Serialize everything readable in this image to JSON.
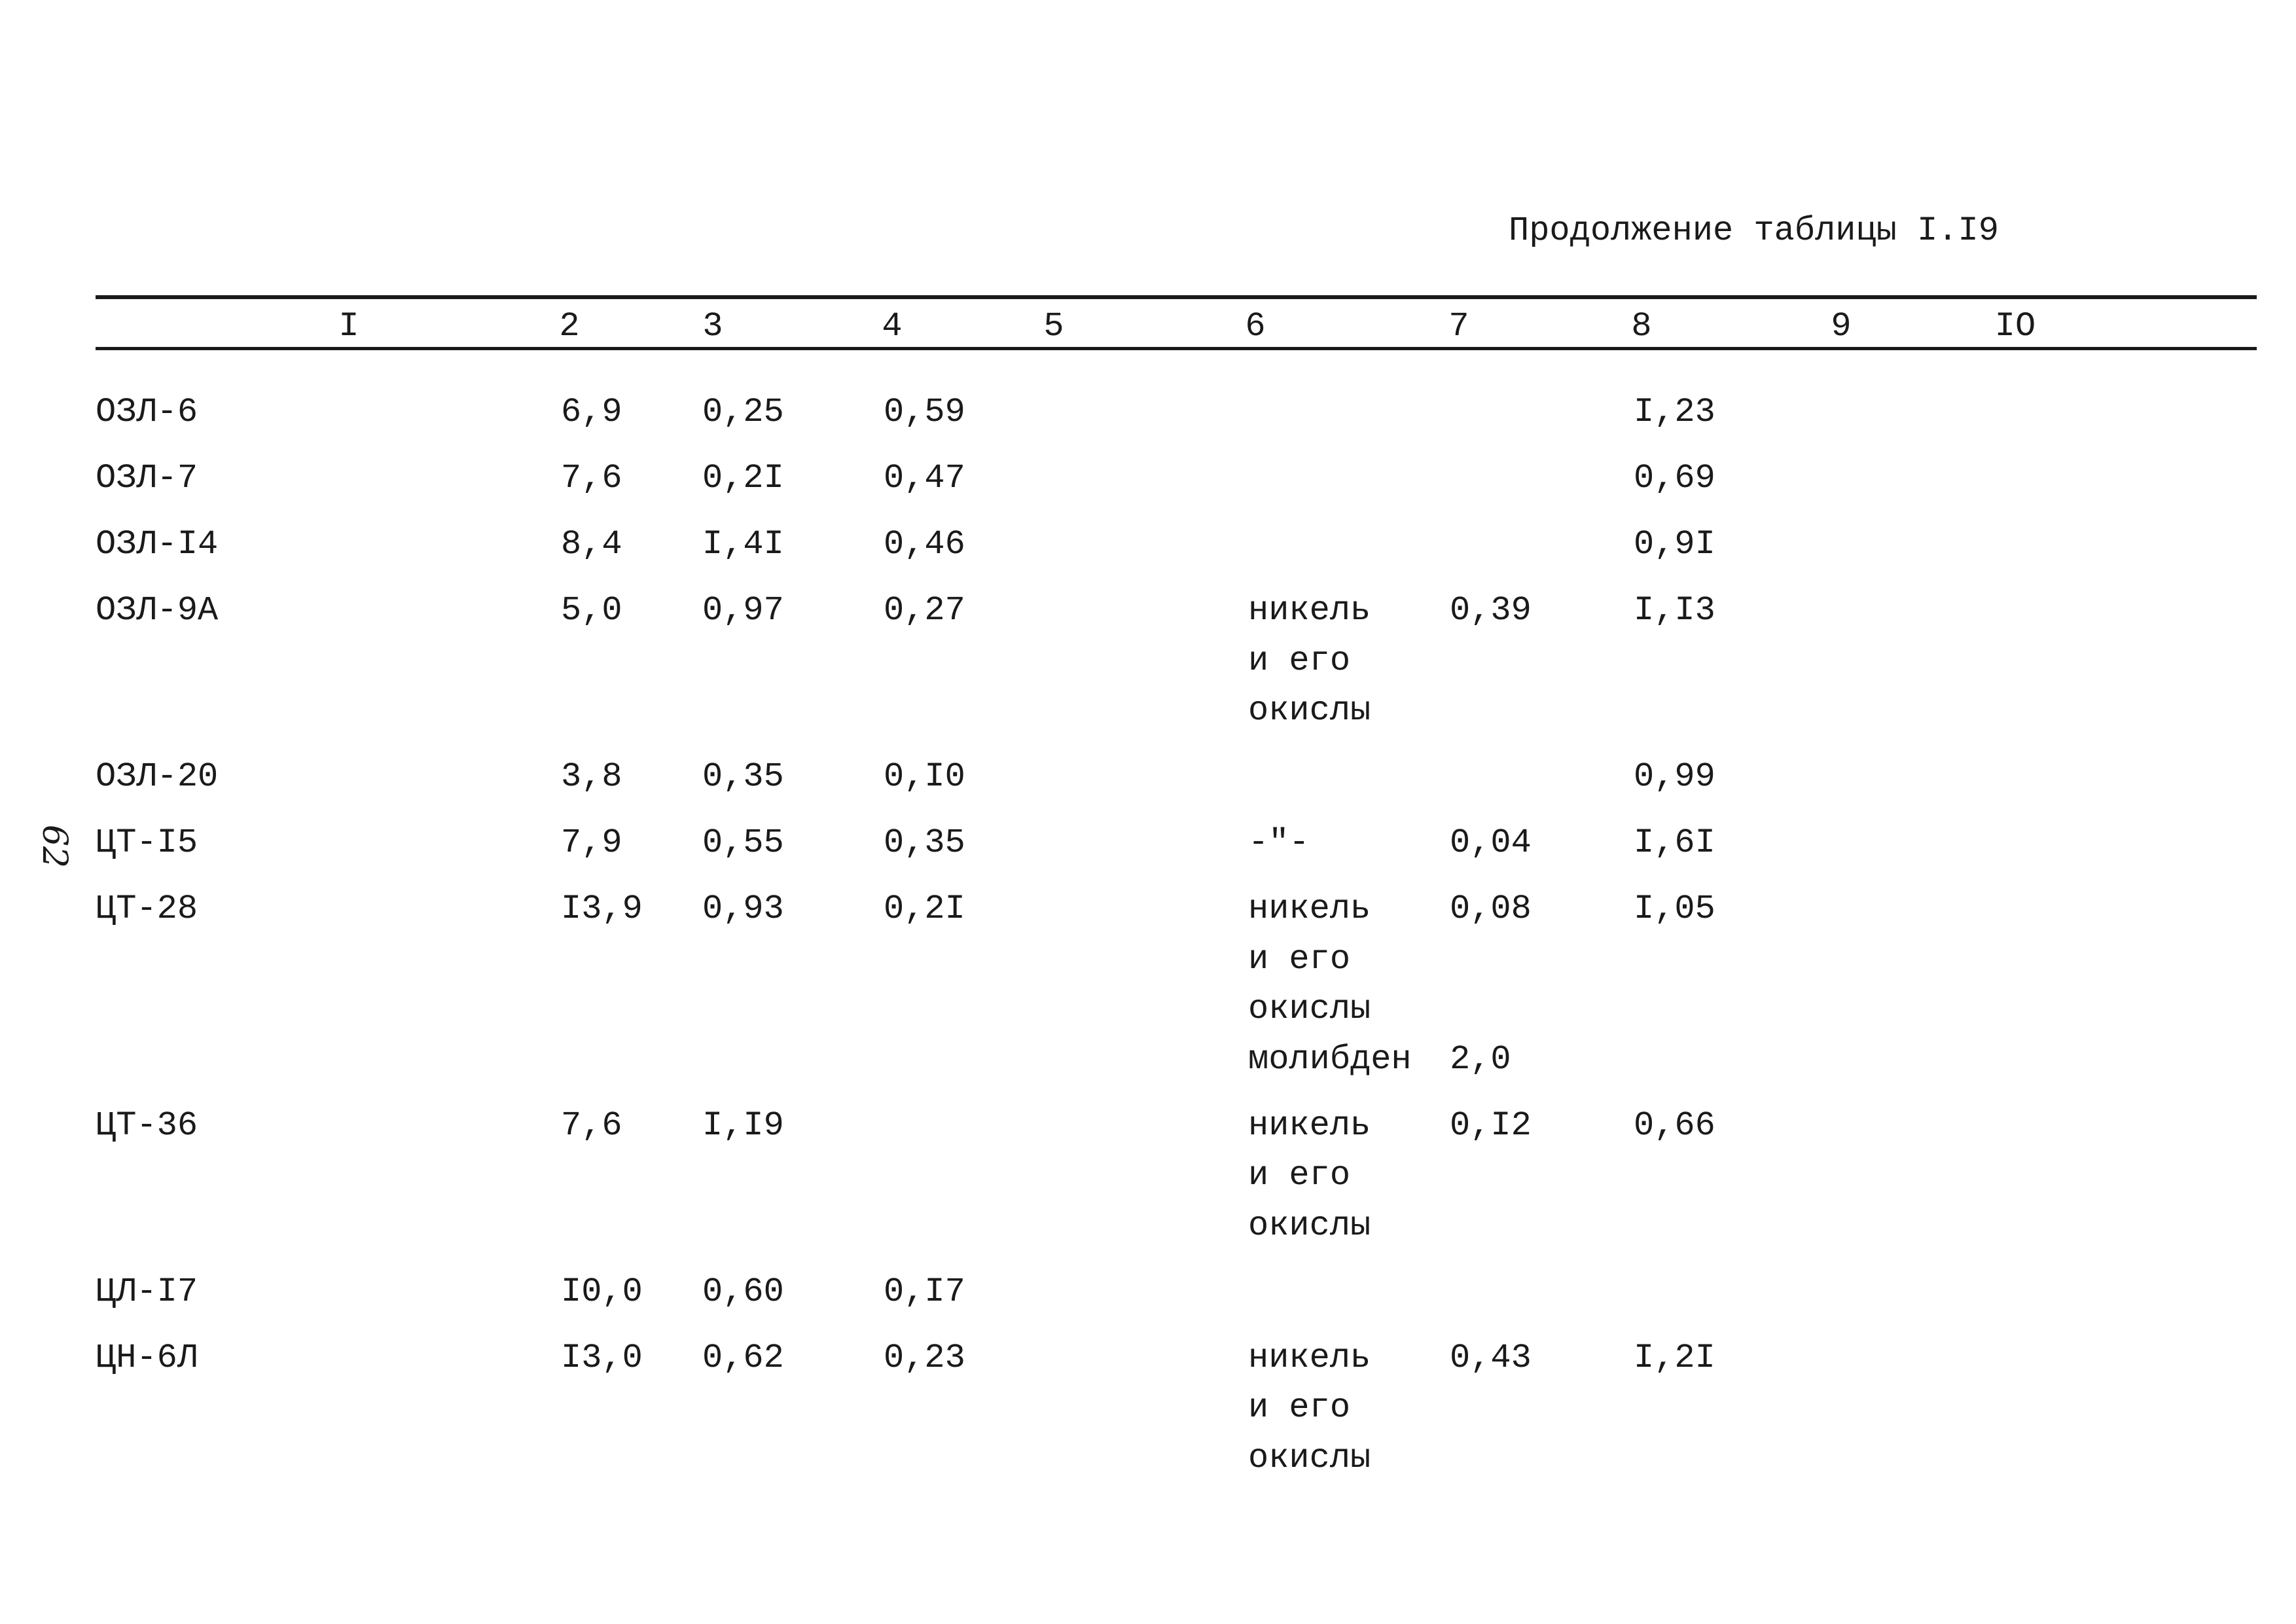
{
  "caption": "Продолжение таблицы I.I9",
  "margin_note": "62",
  "table": {
    "columns": [
      "I",
      "2",
      "3",
      "4",
      "5",
      "6",
      "7",
      "8",
      "9",
      "IO"
    ],
    "rows": [
      [
        "ОЗЛ-6",
        "6,9",
        "0,25",
        "0,59",
        null,
        null,
        null,
        "I,23",
        null,
        null
      ],
      [
        "ОЗЛ-7",
        "7,6",
        "0,2I",
        "0,47",
        null,
        null,
        null,
        "0,69",
        null,
        null
      ],
      [
        "ОЗЛ-I4",
        "8,4",
        "I,4I",
        "0,46",
        null,
        null,
        null,
        "0,9I",
        null,
        null
      ],
      [
        "ОЗЛ-9А",
        "5,0",
        "0,97",
        "0,27",
        null,
        [
          "никель",
          "и его",
          "окислы"
        ],
        "0,39",
        "I,I3",
        null,
        null
      ],
      [
        "ОЗЛ-20",
        "3,8",
        "0,35",
        "0,I0",
        null,
        null,
        null,
        "0,99",
        null,
        null
      ],
      [
        "ЦТ-I5",
        "7,9",
        "0,55",
        "0,35",
        null,
        "-\"-",
        "0,04",
        "I,6I",
        null,
        null
      ],
      [
        "ЦТ-28",
        "I3,9",
        "0,93",
        "0,2I",
        null,
        [
          "никель",
          "и его",
          "окислы",
          "молибден"
        ],
        [
          "0,08",
          null,
          null,
          "2,0"
        ],
        "I,05",
        null,
        null
      ],
      [
        "ЦТ-36",
        "7,6",
        "I,I9",
        null,
        null,
        [
          "никель",
          "и его",
          "окислы"
        ],
        "0,I2",
        "0,66",
        null,
        null
      ],
      [
        "ЦЛ-I7",
        "I0,0",
        "0,60",
        "0,I7",
        null,
        null,
        null,
        null,
        null,
        null
      ],
      [
        "ЦН-6Л",
        "I3,0",
        "0,62",
        "0,23",
        null,
        [
          "никель",
          "и его",
          "окислы"
        ],
        "0,43",
        "I,2I",
        null,
        null
      ]
    ]
  }
}
